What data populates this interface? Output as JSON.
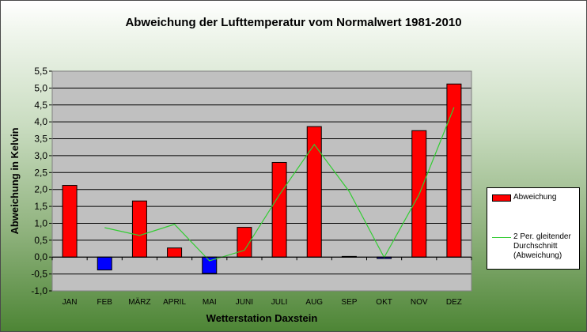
{
  "chart_data": {
    "type": "bar",
    "title": "Abweichung der Lufttemperatur vom Normalwert 1981-2010",
    "xlabel": "Wetterstation Daxstein",
    "ylabel": "Abweichung in Kelvin",
    "categories": [
      "JAN",
      "FEB",
      "MÄRZ",
      "APRIL",
      "MAI",
      "JUNI",
      "JULI",
      "AUG",
      "SEP",
      "OKT",
      "NOV",
      "DEZ"
    ],
    "ylim": [
      -1.0,
      5.5
    ],
    "yticks": [
      "-1,0",
      "-0,5",
      "0,0",
      "0,5",
      "1,0",
      "1,5",
      "2,0",
      "2,5",
      "3,0",
      "3,5",
      "4,0",
      "4,5",
      "5,0",
      "5,5"
    ],
    "grid": true,
    "legend_position": "right",
    "series": [
      {
        "name": "Abweichung",
        "kind": "bar",
        "values": [
          2.12,
          -0.38,
          1.66,
          0.27,
          -0.48,
          0.88,
          2.8,
          3.86,
          0.02,
          -0.04,
          3.74,
          5.12
        ],
        "positive_color": "#ff0000",
        "negative_color": "#0000ff"
      },
      {
        "name": "2 Per. gleitender Durchschnitt (Abweichung)",
        "kind": "line",
        "values": [
          null,
          0.87,
          0.64,
          0.97,
          -0.11,
          0.2,
          1.84,
          3.33,
          1.94,
          -0.01,
          1.85,
          4.43
        ],
        "color": "#33cc33"
      }
    ],
    "legend": [
      "Abweichung",
      "2 Per. gleitender Durchschnitt (Abweichung)"
    ]
  }
}
